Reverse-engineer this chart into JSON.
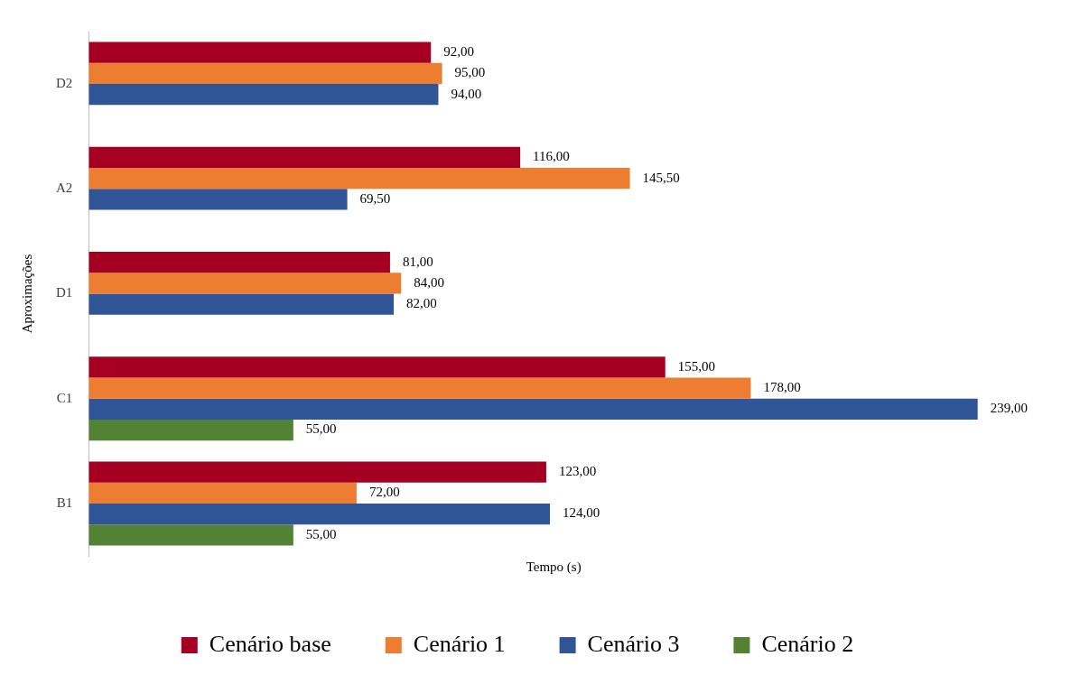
{
  "chart_data": {
    "type": "bar",
    "orientation": "horizontal",
    "xlabel": "Tempo (s)",
    "ylabel": "Aproximações",
    "categories": [
      "D2",
      "A2",
      "D1",
      "C1",
      "B1"
    ],
    "series": [
      {
        "name": "Cenário base",
        "color": "#a50021",
        "values": [
          92,
          116,
          81,
          155,
          123
        ],
        "value_labels": [
          "92,00",
          "116,00",
          "81,00",
          "155,00",
          "123,00"
        ]
      },
      {
        "name": "Cenário 1",
        "color": "#ed7d31",
        "values": [
          95,
          145.5,
          84,
          178,
          72
        ],
        "value_labels": [
          "95,00",
          "145,50",
          "84,00",
          "178,00",
          "72,00"
        ]
      },
      {
        "name": "Cenário 3",
        "color": "#2f5597",
        "values": [
          94,
          69.5,
          82,
          239,
          124
        ],
        "value_labels": [
          "94,00",
          "69,50",
          "82,00",
          "239,00",
          "124,00"
        ]
      },
      {
        "name": "Cenário 2",
        "color": "#548235",
        "values": [
          null,
          null,
          null,
          55,
          55
        ],
        "value_labels": [
          null,
          null,
          null,
          "55,00",
          "55,00"
        ]
      }
    ],
    "legend": "bottom",
    "grid": false,
    "tick_labels": "y"
  }
}
